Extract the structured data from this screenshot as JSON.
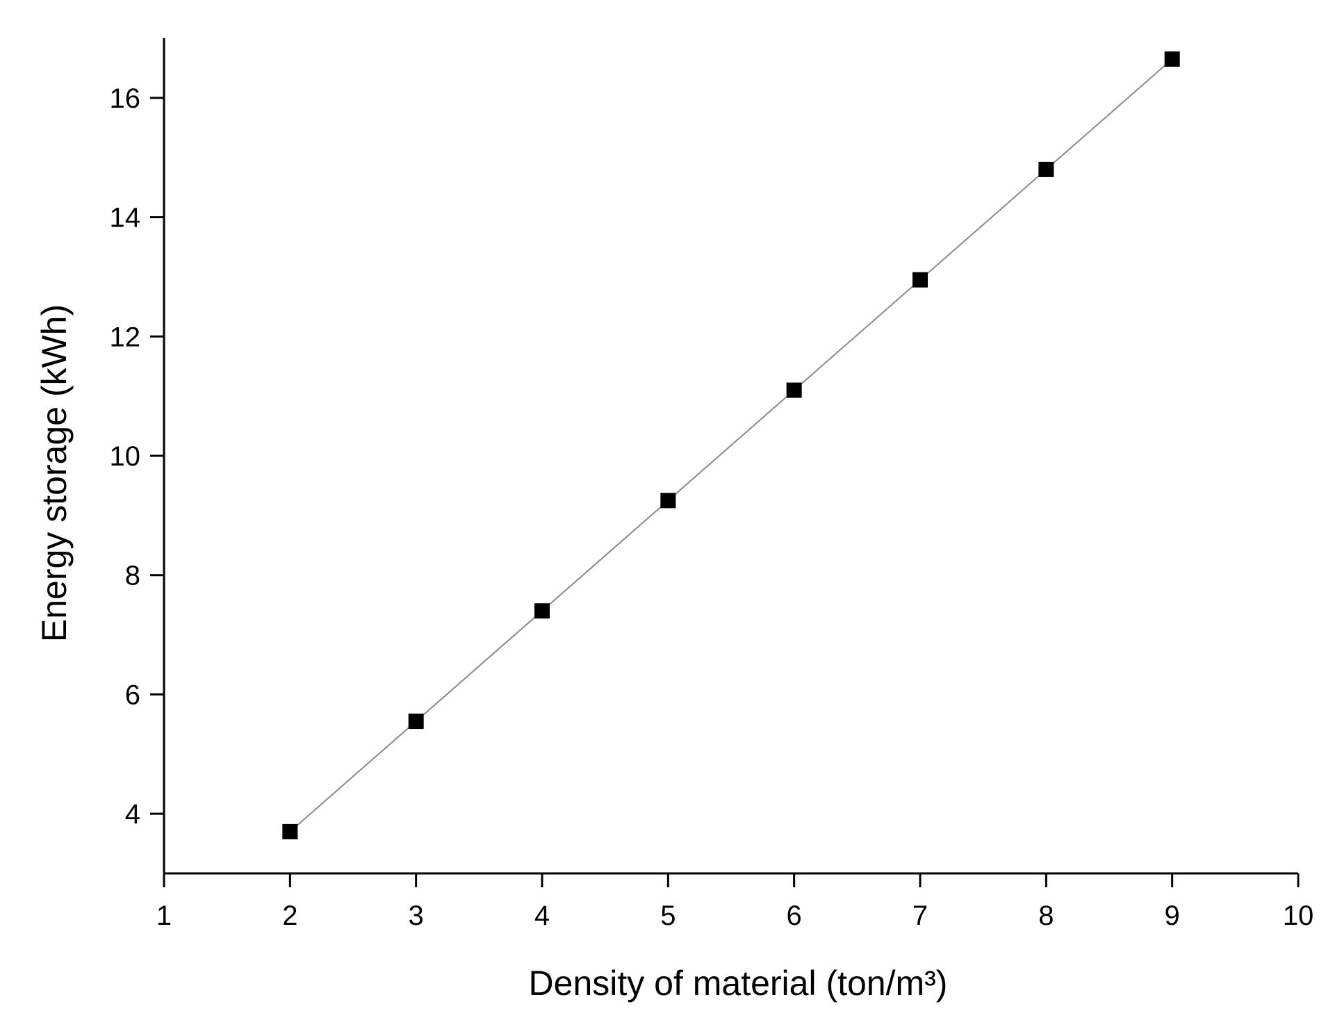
{
  "chart_data": {
    "type": "line",
    "title": "",
    "xlabel": "Density of material (ton/m³)",
    "ylabel": "Energy storage (kWh)",
    "xlim": [
      1,
      10
    ],
    "ylim": [
      3,
      17
    ],
    "xticks": [
      "1",
      "2",
      "3",
      "4",
      "5",
      "6",
      "7",
      "8",
      "9",
      "10"
    ],
    "yticks": [
      "4",
      "6",
      "8",
      "10",
      "12",
      "14",
      "16"
    ],
    "grid": false,
    "legend": "none",
    "marker": "square",
    "colors": {
      "marker": "#000000",
      "line": "#8a8a8a",
      "axis": "#000000"
    },
    "series": [
      {
        "x": [
          2,
          3,
          4,
          5,
          6,
          7,
          8,
          9
        ],
        "y": [
          3.7,
          5.55,
          7.4,
          9.25,
          11.1,
          12.95,
          14.8,
          16.65
        ]
      }
    ]
  }
}
